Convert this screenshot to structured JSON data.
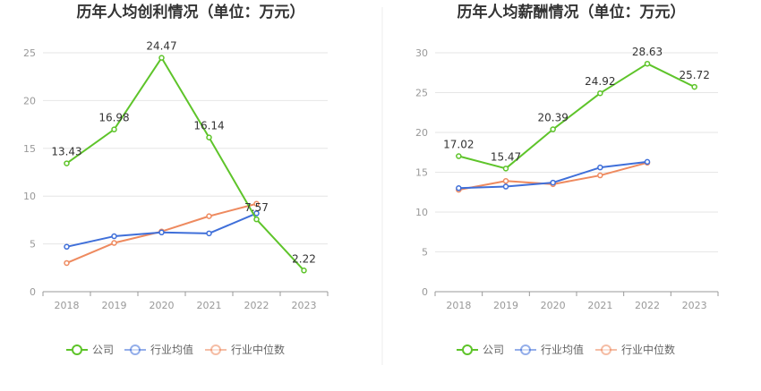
{
  "colors": {
    "company": "#5ec42a",
    "avg": "#3f6fd9",
    "median": "#ee8a5f",
    "grid": "#e6e6e6",
    "axis": "#999999"
  },
  "chart_data": [
    {
      "type": "line",
      "title": "历年人均创利情况（单位：万元）",
      "categories": [
        "2018",
        "2019",
        "2020",
        "2021",
        "2022",
        "2023"
      ],
      "ylim": [
        0,
        25
      ],
      "yticks": [
        "0",
        "5",
        "10",
        "15",
        "20",
        "25"
      ],
      "grid": true,
      "legend_position": "bottom",
      "series": [
        {
          "name": "公司",
          "values": [
            13.43,
            16.98,
            24.47,
            16.14,
            7.57,
            2.22
          ],
          "labels": [
            "13.43",
            "16.98",
            "24.47",
            "16.14",
            "7.57",
            "2.22"
          ]
        },
        {
          "name": "行业均值",
          "values": [
            4.7,
            5.8,
            6.2,
            6.1,
            8.2,
            null
          ]
        },
        {
          "name": "行业中位数",
          "values": [
            3.0,
            5.1,
            6.3,
            7.9,
            9.2,
            null
          ]
        }
      ]
    },
    {
      "type": "line",
      "title": "历年人均薪酬情况（单位：万元）",
      "categories": [
        "2018",
        "2019",
        "2020",
        "2021",
        "2022",
        "2023"
      ],
      "ylim": [
        0,
        30
      ],
      "yticks": [
        "0",
        "5",
        "10",
        "15",
        "20",
        "25",
        "30"
      ],
      "grid": true,
      "legend_position": "bottom",
      "series": [
        {
          "name": "公司",
          "values": [
            17.02,
            15.47,
            20.39,
            24.92,
            28.63,
            25.72
          ],
          "labels": [
            "17.02",
            "15.47",
            "20.39",
            "24.92",
            "28.63",
            "25.72"
          ]
        },
        {
          "name": "行业均值",
          "values": [
            13.0,
            13.2,
            13.7,
            15.6,
            16.3,
            null
          ]
        },
        {
          "name": "行业中位数",
          "values": [
            12.8,
            13.9,
            13.5,
            14.6,
            16.2,
            null
          ]
        }
      ]
    }
  ]
}
